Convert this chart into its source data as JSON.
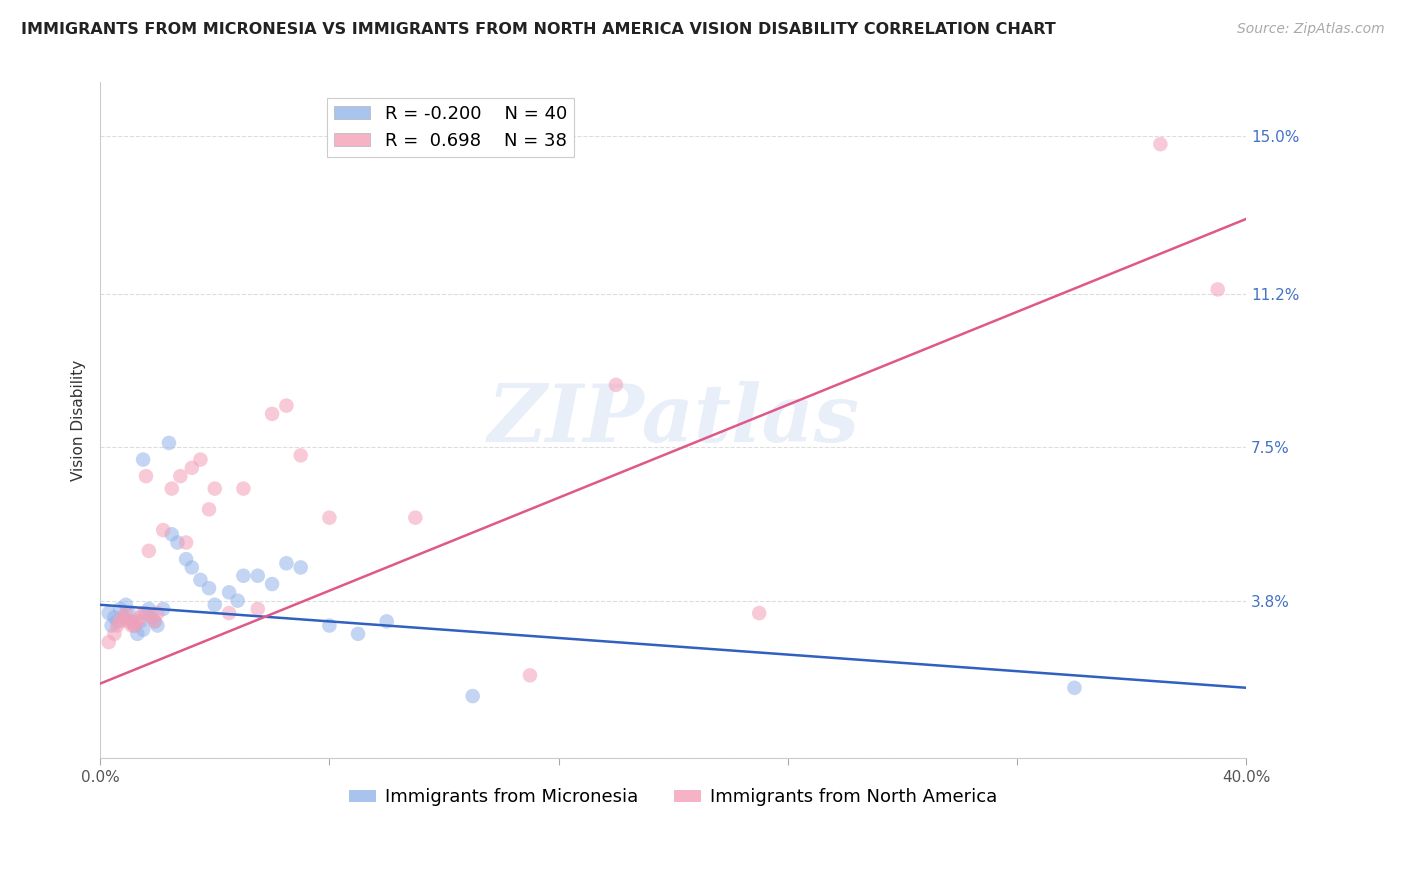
{
  "title": "IMMIGRANTS FROM MICRONESIA VS IMMIGRANTS FROM NORTH AMERICA VISION DISABILITY CORRELATION CHART",
  "source": "Source: ZipAtlas.com",
  "ylabel": "Vision Disability",
  "yticks": [
    0.0,
    0.038,
    0.075,
    0.112,
    0.15
  ],
  "ytick_labels": [
    "",
    "3.8%",
    "7.5%",
    "11.2%",
    "15.0%"
  ],
  "xlim": [
    0.0,
    0.4
  ],
  "ylim": [
    0.0,
    0.163
  ],
  "watermark": "ZIPatlas",
  "legend_r1": "R = -0.200",
  "legend_n1": "N = 40",
  "legend_r2": "R =  0.698",
  "legend_n2": "N = 38",
  "legend_label1": "Immigrants from Micronesia",
  "legend_label2": "Immigrants from North America",
  "color_blue": "#92b4e8",
  "color_pink": "#f4a0b8",
  "color_blue_line": "#3060c0",
  "color_pink_line": "#e05888",
  "blue_scatter_x": [
    0.003,
    0.004,
    0.005,
    0.006,
    0.007,
    0.008,
    0.009,
    0.01,
    0.011,
    0.012,
    0.013,
    0.014,
    0.015,
    0.016,
    0.017,
    0.018,
    0.019,
    0.02,
    0.022,
    0.024,
    0.025,
    0.027,
    0.03,
    0.032,
    0.035,
    0.038,
    0.04,
    0.045,
    0.048,
    0.05,
    0.055,
    0.06,
    0.065,
    0.07,
    0.08,
    0.09,
    0.1,
    0.13,
    0.34,
    0.015
  ],
  "blue_scatter_y": [
    0.035,
    0.032,
    0.034,
    0.033,
    0.036,
    0.034,
    0.037,
    0.035,
    0.033,
    0.032,
    0.03,
    0.033,
    0.031,
    0.035,
    0.036,
    0.034,
    0.033,
    0.032,
    0.036,
    0.076,
    0.054,
    0.052,
    0.048,
    0.046,
    0.043,
    0.041,
    0.037,
    0.04,
    0.038,
    0.044,
    0.044,
    0.042,
    0.047,
    0.046,
    0.032,
    0.03,
    0.033,
    0.015,
    0.017,
    0.072
  ],
  "pink_scatter_x": [
    0.003,
    0.005,
    0.006,
    0.007,
    0.008,
    0.009,
    0.01,
    0.011,
    0.012,
    0.013,
    0.014,
    0.015,
    0.016,
    0.017,
    0.018,
    0.019,
    0.02,
    0.022,
    0.025,
    0.028,
    0.03,
    0.032,
    0.035,
    0.038,
    0.04,
    0.045,
    0.05,
    0.055,
    0.06,
    0.065,
    0.07,
    0.08,
    0.11,
    0.15,
    0.18,
    0.23,
    0.37,
    0.39
  ],
  "pink_scatter_y": [
    0.028,
    0.03,
    0.032,
    0.033,
    0.034,
    0.035,
    0.033,
    0.032,
    0.032,
    0.033,
    0.034,
    0.035,
    0.068,
    0.05,
    0.034,
    0.033,
    0.035,
    0.055,
    0.065,
    0.068,
    0.052,
    0.07,
    0.072,
    0.06,
    0.065,
    0.035,
    0.065,
    0.036,
    0.083,
    0.085,
    0.073,
    0.058,
    0.058,
    0.02,
    0.09,
    0.035,
    0.148,
    0.113
  ],
  "blue_line_x": [
    0.0,
    0.4
  ],
  "blue_line_y": [
    0.037,
    0.017
  ],
  "pink_line_x": [
    0.0,
    0.4
  ],
  "pink_line_y": [
    0.018,
    0.13
  ],
  "title_fontsize": 11.5,
  "source_fontsize": 10,
  "axis_label_fontsize": 11,
  "tick_fontsize": 11,
  "legend_fontsize": 13,
  "scatter_size": 110,
  "scatter_alpha": 0.55,
  "background_color": "#ffffff",
  "grid_color": "#dddddd",
  "ytick_color": "#4472c4",
  "xtick_label_color": "#555555"
}
